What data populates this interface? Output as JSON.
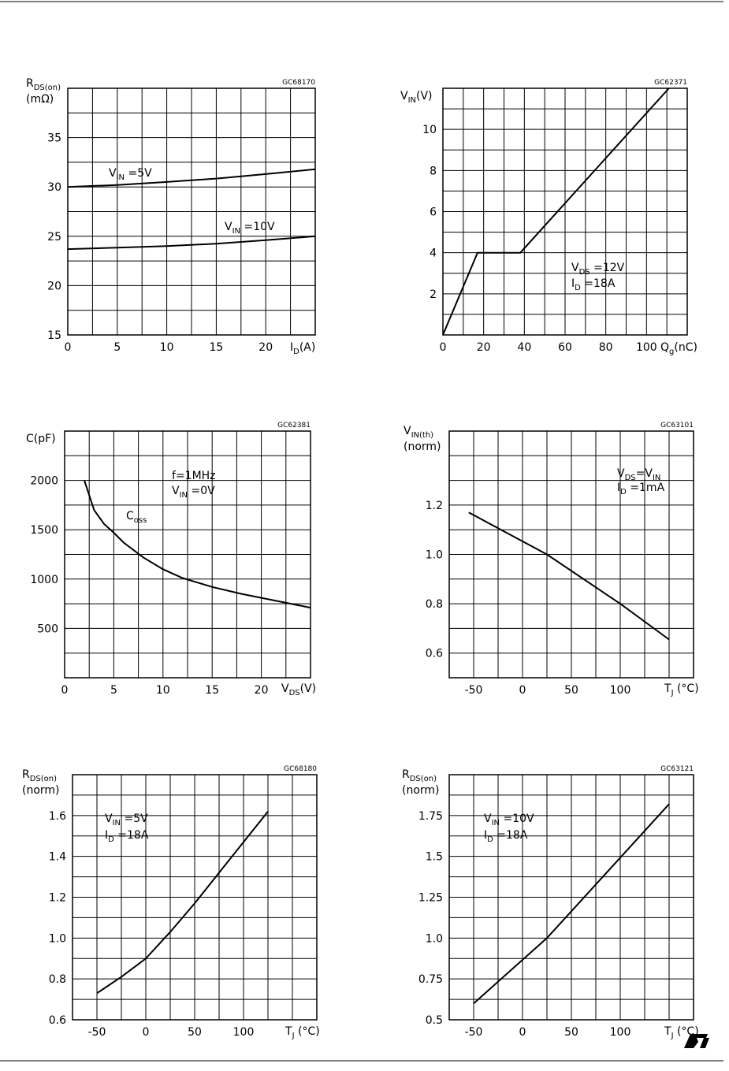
{
  "chart_data": [
    {
      "type": "line",
      "code": "GC68170",
      "ylabel": [
        [
          {
            "text": "R"
          },
          {
            "sub": "DS(on)"
          }
        ],
        [
          {
            "text": "(mΩ)"
          }
        ]
      ],
      "xlabel": [
        {
          "text": "I"
        },
        {
          "sub": "D"
        },
        {
          "text": "(A)"
        }
      ],
      "xlim": [
        0,
        25
      ],
      "ylim": [
        15,
        40
      ],
      "xticks": [
        0,
        5,
        10,
        15,
        20
      ],
      "yticks": [
        15,
        20,
        25,
        30,
        35
      ],
      "xgrid_step": 2.5,
      "ygrid_step": 2.5,
      "series": [
        {
          "color": "#000000",
          "x": [
            0,
            5,
            10,
            15,
            20,
            25
          ],
          "values": [
            30,
            30.2,
            30.5,
            30.85,
            31.3,
            31.8
          ]
        },
        {
          "color": "#000000",
          "x": [
            0,
            5,
            10,
            15,
            20,
            25
          ],
          "values": [
            23.7,
            23.85,
            24.0,
            24.25,
            24.6,
            25.0
          ]
        }
      ],
      "annotations": [
        [
          {
            "text": "V"
          },
          {
            "sub": "IN"
          },
          {
            "text": " =5V"
          }
        ],
        [
          {
            "text": "V"
          },
          {
            "sub": "IN"
          },
          {
            "text": " =10V"
          }
        ]
      ]
    },
    {
      "type": "line",
      "code": "GC62371",
      "ylabel": [
        [
          {
            "text": "V"
          },
          {
            "sub": "IN"
          },
          {
            "text": "(V)"
          }
        ]
      ],
      "xlabel": [
        {
          "text": "Q"
        },
        {
          "sub": "g"
        },
        {
          "text": "(nC)"
        }
      ],
      "xlim": [
        0,
        120
      ],
      "ylim": [
        0,
        12
      ],
      "xticks": [
        0,
        20,
        40,
        60,
        80,
        100
      ],
      "yticks": [
        2,
        4,
        6,
        8,
        10
      ],
      "xgrid_step": 10,
      "ygrid_step": 1,
      "series": [
        {
          "color": "#000000",
          "x": [
            0,
            17,
            38,
            111
          ],
          "values": [
            0,
            4,
            4,
            12
          ]
        }
      ],
      "annotations": [
        [
          {
            "text": "V"
          },
          {
            "sub": "DS"
          },
          {
            "text": " =12V"
          }
        ],
        [
          {
            "text": "I"
          },
          {
            "sub": "D"
          },
          {
            "text": " =18A"
          }
        ]
      ]
    },
    {
      "type": "line",
      "code": "GC62381",
      "ylabel": [
        [
          {
            "text": "C(pF)"
          }
        ]
      ],
      "xlabel": [
        {
          "text": "V"
        },
        {
          "sub": "DS"
        },
        {
          "text": "(V)"
        }
      ],
      "xlim": [
        0,
        25
      ],
      "ylim": [
        0,
        2500
      ],
      "xticks": [
        0,
        5,
        10,
        15,
        20
      ],
      "yticks": [
        500,
        1000,
        1500,
        2000
      ],
      "xgrid_step": 2.5,
      "ygrid_step": 250,
      "series": [
        {
          "color": "#000000",
          "x": [
            2,
            3,
            4,
            5,
            6,
            8,
            10,
            12,
            15,
            18,
            21,
            25
          ],
          "values": [
            2000,
            1700,
            1560,
            1470,
            1370,
            1220,
            1100,
            1010,
            920,
            850,
            790,
            710
          ]
        }
      ],
      "annotations": [
        [
          {
            "text": "f=1MHz"
          }
        ],
        [
          {
            "text": "V"
          },
          {
            "sub": "IN"
          },
          {
            "text": " =0V"
          }
        ],
        [
          {
            "text": "C"
          },
          {
            "sub": "oss"
          }
        ]
      ]
    },
    {
      "type": "line",
      "code": "GC63101",
      "ylabel": [
        [
          {
            "text": "V"
          },
          {
            "sub": "IN(th)"
          }
        ],
        [
          {
            "text": "(norm)"
          }
        ]
      ],
      "xlabel": [
        {
          "text": "T"
        },
        {
          "sub": "J"
        },
        {
          "text": " (°C)"
        }
      ],
      "xlim": [
        -75,
        175
      ],
      "ylim": [
        0.5,
        1.5
      ],
      "xticks": [
        -50,
        0,
        50,
        100
      ],
      "yticks": [
        0.6,
        0.8,
        {
          "value": 1,
          "label": "1.0"
        },
        1.2
      ],
      "xgrid_step": 25,
      "ygrid_step": 0.1,
      "series": [
        {
          "color": "#000000",
          "x": [
            -55,
            25,
            100,
            150
          ],
          "values": [
            1.17,
            1.0,
            0.8,
            0.655
          ]
        }
      ],
      "annotations": [
        [
          {
            "text": "V"
          },
          {
            "sub": "DS"
          },
          {
            "text": "=V"
          },
          {
            "sub": "IN"
          }
        ],
        [
          {
            "text": "I"
          },
          {
            "sub": "D"
          },
          {
            "text": " =1mA"
          }
        ]
      ]
    },
    {
      "type": "line",
      "code": "GC68180",
      "ylabel": [
        [
          {
            "text": "R"
          },
          {
            "sub": "DS(on)"
          }
        ],
        [
          {
            "text": "(norm)"
          }
        ]
      ],
      "xlabel": [
        {
          "text": "T"
        },
        {
          "sub": "J"
        },
        {
          "text": " (°C)"
        }
      ],
      "xlim": [
        -75,
        175
      ],
      "ylim": [
        0.6,
        1.8
      ],
      "xticks": [
        -50,
        0,
        50,
        100
      ],
      "yticks": [
        0.6,
        0.8,
        {
          "value": 1,
          "label": "1.0"
        },
        1.2,
        1.4,
        1.6
      ],
      "xgrid_step": 25,
      "ygrid_step": 0.1,
      "series": [
        {
          "color": "#000000",
          "x": [
            -50,
            -25,
            0,
            25,
            50,
            75,
            100,
            125
          ],
          "values": [
            0.73,
            0.81,
            0.9,
            1.03,
            1.17,
            1.32,
            1.47,
            1.62
          ]
        }
      ],
      "annotations": [
        [
          {
            "text": "V"
          },
          {
            "sub": "IN"
          },
          {
            "text": " =5V"
          }
        ],
        [
          {
            "text": "I"
          },
          {
            "sub": "D"
          },
          {
            "text": " =18A"
          }
        ]
      ]
    },
    {
      "type": "line",
      "code": "GC63121",
      "ylabel": [
        [
          {
            "text": "R"
          },
          {
            "sub": "DS(on)"
          }
        ],
        [
          {
            "text": "(norm)"
          }
        ]
      ],
      "xlabel": [
        {
          "text": "T"
        },
        {
          "sub": "J"
        },
        {
          "text": " (°C)"
        }
      ],
      "xlim": [
        -75,
        175
      ],
      "ylim": [
        0.5,
        2
      ],
      "xticks": [
        -50,
        0,
        50,
        100
      ],
      "yticks": [
        0.5,
        0.75,
        {
          "value": 1,
          "label": "1.0"
        },
        1.25,
        1.5,
        1.75
      ],
      "xgrid_step": 25,
      "ygrid_step": 0.125,
      "series": [
        {
          "color": "#000000",
          "x": [
            -50,
            25,
            150
          ],
          "values": [
            0.6,
            1.0,
            1.82
          ]
        }
      ],
      "annotations": [
        [
          {
            "text": "V"
          },
          {
            "sub": "IN"
          },
          {
            "text": " =10V"
          }
        ],
        [
          {
            "text": "I"
          },
          {
            "sub": "D"
          },
          {
            "text": " =18A"
          }
        ]
      ]
    }
  ]
}
